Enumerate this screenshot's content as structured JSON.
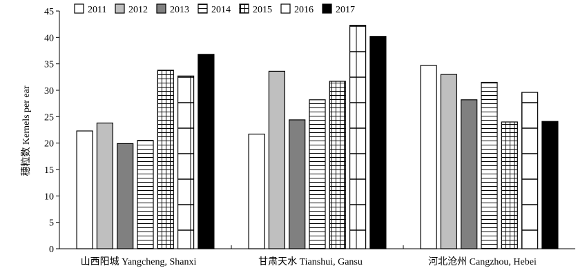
{
  "chart_data": {
    "type": "bar",
    "ylabel": "穗粒数 Kernels per ear",
    "ylim": [
      0,
      45
    ],
    "yticks": [
      0,
      5,
      10,
      15,
      20,
      25,
      30,
      35,
      40,
      45
    ],
    "categories": [
      "山西阳城 Yangcheng, Shanxi",
      "甘肃天水 Tianshui, Gansu",
      "河北沧州 Cangzhou, Hebei"
    ],
    "legend_position": "top",
    "grid": false,
    "series": [
      {
        "name": "2011",
        "fill": "white",
        "values": [
          22.3,
          21.7,
          34.7
        ]
      },
      {
        "name": "2012",
        "fill": "light-gray",
        "values": [
          23.8,
          33.6,
          33.0
        ]
      },
      {
        "name": "2013",
        "fill": "dark-gray",
        "values": [
          19.9,
          24.4,
          28.2
        ]
      },
      {
        "name": "2014",
        "fill": "horizontal-lines",
        "values": [
          20.5,
          28.2,
          31.5
        ]
      },
      {
        "name": "2015",
        "fill": "grid",
        "values": [
          33.8,
          31.7,
          24.0
        ]
      },
      {
        "name": "2016",
        "fill": "segmented",
        "values": [
          32.7,
          42.3,
          29.6
        ]
      },
      {
        "name": "2017",
        "fill": "black",
        "values": [
          36.8,
          40.2,
          24.1
        ]
      }
    ]
  }
}
